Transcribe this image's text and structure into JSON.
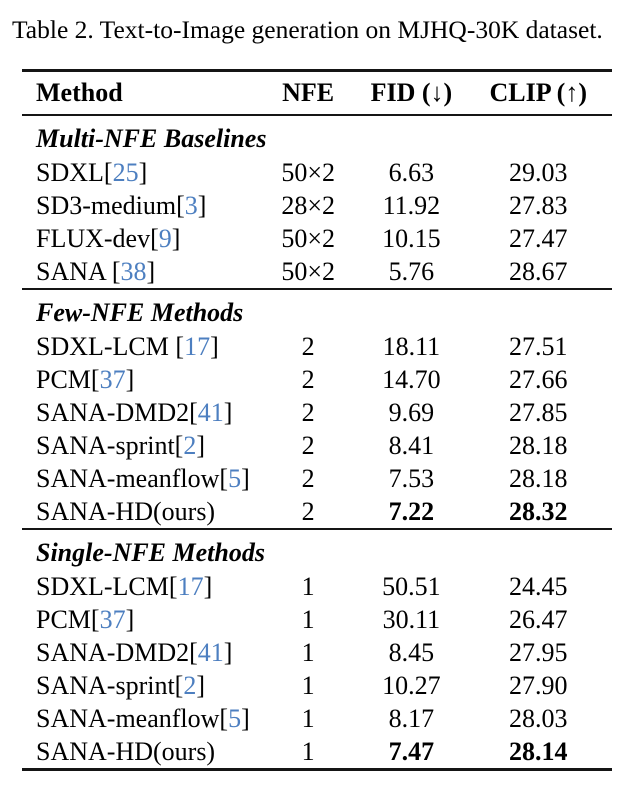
{
  "caption": "Table 2. Text-to-Image generation on MJHQ-30K dataset.",
  "colors": {
    "cite_link": "#4d7fc0",
    "text": "#000000",
    "rule": "#151515"
  },
  "table": {
    "headers": [
      "Method",
      "NFE",
      "FID (↓)",
      "CLIP (↑)"
    ],
    "sections": [
      {
        "title": "Multi-NFE Baselines",
        "rows": [
          {
            "pre": "SDXL[",
            "cite": "25",
            "post": "]",
            "nfe": "50×2",
            "fid": "6.63",
            "clip": "29.03"
          },
          {
            "pre": "SD3-medium[",
            "cite": "3",
            "post": "]",
            "nfe": "28×2",
            "fid": "11.92",
            "clip": "27.83"
          },
          {
            "pre": "FLUX-dev[",
            "cite": "9",
            "post": "]",
            "nfe": "50×2",
            "fid": "10.15",
            "clip": "27.47"
          },
          {
            "pre": "SANA [",
            "cite": "38",
            "post": "]",
            "nfe": "50×2",
            "fid": "5.76",
            "clip": "28.67"
          }
        ]
      },
      {
        "title": "Few-NFE Methods",
        "rows": [
          {
            "pre": "SDXL-LCM [",
            "cite": "17",
            "post": "]",
            "nfe": "2",
            "fid": "18.11",
            "clip": "27.51"
          },
          {
            "pre": "PCM[",
            "cite": "37",
            "post": "]",
            "nfe": "2",
            "fid": "14.70",
            "clip": "27.66"
          },
          {
            "pre": "SANA-DMD2[",
            "cite": "41",
            "post": "]",
            "nfe": "2",
            "fid": "9.69",
            "clip": "27.85"
          },
          {
            "pre": "SANA-sprint[",
            "cite": "2",
            "post": "]",
            "nfe": "2",
            "fid": "8.41",
            "clip": "28.18"
          },
          {
            "pre": "SANA-meanflow[",
            "cite": "5",
            "post": "]",
            "nfe": "2",
            "fid": "7.53",
            "clip": "28.18"
          },
          {
            "pre": "SANA-HD(ours)",
            "cite": "",
            "post": "",
            "nfe": "2",
            "fid": "7.22",
            "clip": "28.32",
            "best": true
          }
        ]
      },
      {
        "title": "Single-NFE Methods",
        "rows": [
          {
            "pre": "SDXL-LCM[",
            "cite": "17",
            "post": "]",
            "nfe": "1",
            "fid": "50.51",
            "clip": "24.45"
          },
          {
            "pre": "PCM[",
            "cite": "37",
            "post": "]",
            "nfe": "1",
            "fid": "30.11",
            "clip": "26.47"
          },
          {
            "pre": "SANA-DMD2[",
            "cite": "41",
            "post": "]",
            "nfe": "1",
            "fid": "8.45",
            "clip": "27.95"
          },
          {
            "pre": "SANA-sprint[",
            "cite": "2",
            "post": "]",
            "nfe": "1",
            "fid": "10.27",
            "clip": "27.90"
          },
          {
            "pre": "SANA-meanflow[",
            "cite": "5",
            "post": "]",
            "nfe": "1",
            "fid": "8.17",
            "clip": "28.03"
          },
          {
            "pre": "SANA-HD(ours)",
            "cite": "",
            "post": "",
            "nfe": "1",
            "fid": "7.47",
            "clip": "28.14",
            "best": true
          }
        ]
      }
    ]
  }
}
